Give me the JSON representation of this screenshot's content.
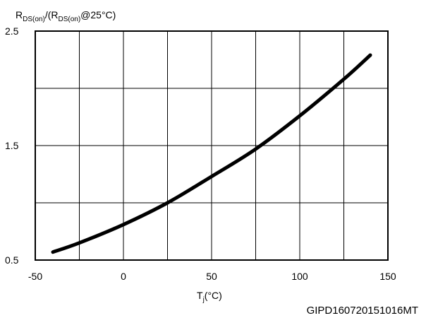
{
  "chart_data": {
    "type": "line",
    "ylabel": {
      "p1": "R",
      "p1_sub": "DS(on)",
      "p2": "/(R",
      "p2_sub": "DS(on)",
      "p3": "@25°C)"
    },
    "xlabel": {
      "main": "T",
      "sub": "j",
      "unit": "(°C)"
    },
    "xlim": [
      -50,
      150
    ],
    "ylim": [
      0.5,
      2.5
    ],
    "x_ticks": [
      -50,
      0,
      50,
      100,
      150
    ],
    "y_ticks": [
      0.5,
      1.5,
      2.5
    ],
    "x_grid": [
      -50,
      -25,
      0,
      25,
      50,
      75,
      100,
      125,
      150
    ],
    "y_grid": [
      0.5,
      1.0,
      1.5,
      2.0,
      2.5
    ],
    "grid": true,
    "line_color": "#000000",
    "series": [
      {
        "x": [
          -40,
          -25,
          0,
          25,
          50,
          75,
          100,
          125,
          140
        ],
        "values": [
          0.57,
          0.65,
          0.81,
          1.0,
          1.23,
          1.47,
          1.76,
          2.08,
          2.29
        ]
      }
    ]
  },
  "figure_code": "GIPD160720151016MT"
}
